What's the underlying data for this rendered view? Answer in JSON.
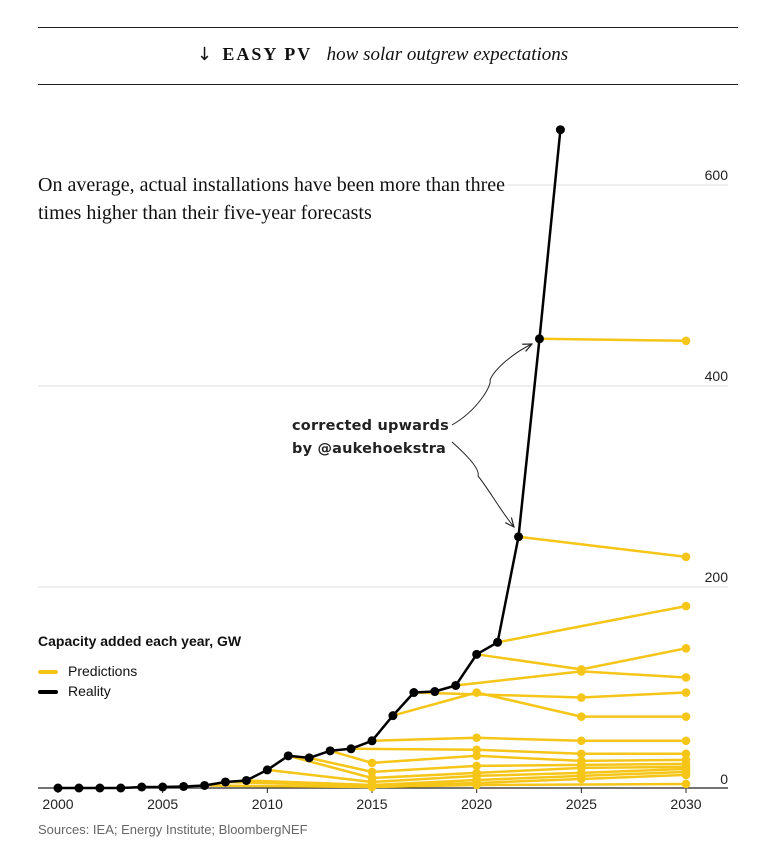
{
  "header": {
    "arrow": "↓",
    "title": "EASY PV",
    "subtitle": "how solar outgrew expectations"
  },
  "headline": "On average, actual installations have been more than three times higher than their five-year forecasts",
  "annotation": {
    "line1": "corrected upwards",
    "line2": "by @aukehoekstra"
  },
  "source": "Sources: IEA; Energy Institute; BloombergNEF",
  "colors": {
    "prediction": "#f5c518",
    "reality": "#000000",
    "grid": "#dddddd",
    "axis": "#222222"
  },
  "chart_data": {
    "type": "line",
    "title": "Capacity added each year, GW",
    "xlim": [
      2000,
      2030
    ],
    "ylim": [
      0,
      650
    ],
    "x_ticks": [
      2000,
      2005,
      2010,
      2015,
      2020,
      2025,
      2030
    ],
    "y_ticks": [
      0,
      200,
      400,
      600
    ],
    "legend": {
      "position": "left",
      "entries": [
        "Predictions",
        "Reality"
      ]
    },
    "reality": {
      "name": "Reality",
      "points": [
        [
          2000,
          0
        ],
        [
          2001,
          0
        ],
        [
          2002,
          0
        ],
        [
          2003,
          0
        ],
        [
          2004,
          1
        ],
        [
          2005,
          1
        ],
        [
          2006,
          1.5
        ],
        [
          2007,
          2.5
        ],
        [
          2008,
          6
        ],
        [
          2009,
          7.5
        ],
        [
          2010,
          18
        ],
        [
          2011,
          32
        ],
        [
          2012,
          30
        ],
        [
          2013,
          37
        ],
        [
          2014,
          39
        ],
        [
          2015,
          47
        ],
        [
          2016,
          72
        ],
        [
          2017,
          95
        ],
        [
          2018,
          96
        ],
        [
          2019,
          102
        ],
        [
          2020,
          133
        ],
        [
          2021,
          145
        ],
        [
          2022,
          250
        ],
        [
          2023,
          447
        ],
        [
          2024,
          655
        ]
      ]
    },
    "predictions": [
      {
        "points": [
          [
            2022,
            250
          ],
          [
            2030,
            230
          ]
        ]
      },
      {
        "points": [
          [
            2023,
            447
          ],
          [
            2030,
            445
          ]
        ]
      },
      {
        "points": [
          [
            2021,
            145
          ],
          [
            2030,
            181
          ]
        ]
      },
      {
        "points": [
          [
            2020,
            133
          ],
          [
            2025,
            118
          ],
          [
            2030,
            139
          ]
        ]
      },
      {
        "points": [
          [
            2019,
            102
          ],
          [
            2025,
            116
          ],
          [
            2030,
            110
          ]
        ]
      },
      {
        "points": [
          [
            2017,
            95
          ],
          [
            2025,
            90
          ],
          [
            2030,
            95
          ]
        ]
      },
      {
        "points": [
          [
            2016,
            72
          ],
          [
            2020,
            95
          ],
          [
            2025,
            71
          ],
          [
            2030,
            71
          ]
        ]
      },
      {
        "points": [
          [
            2015,
            47
          ],
          [
            2020,
            50
          ],
          [
            2025,
            47
          ],
          [
            2030,
            47
          ]
        ]
      },
      {
        "points": [
          [
            2014,
            39
          ],
          [
            2020,
            38
          ],
          [
            2025,
            34
          ],
          [
            2030,
            34
          ]
        ]
      },
      {
        "points": [
          [
            2013,
            37
          ],
          [
            2015,
            25
          ],
          [
            2020,
            32
          ],
          [
            2025,
            27
          ],
          [
            2030,
            28
          ]
        ]
      },
      {
        "points": [
          [
            2012,
            30
          ],
          [
            2015,
            16
          ],
          [
            2020,
            22
          ],
          [
            2025,
            23
          ],
          [
            2030,
            24
          ]
        ]
      },
      {
        "points": [
          [
            2011,
            32
          ],
          [
            2015,
            10
          ],
          [
            2020,
            15
          ],
          [
            2025,
            20
          ],
          [
            2030,
            21
          ]
        ]
      },
      {
        "points": [
          [
            2010,
            18
          ],
          [
            2015,
            6
          ],
          [
            2020,
            12
          ],
          [
            2025,
            15
          ],
          [
            2030,
            19
          ]
        ]
      },
      {
        "points": [
          [
            2009,
            7.5
          ],
          [
            2015,
            3
          ],
          [
            2020,
            8
          ],
          [
            2025,
            12
          ],
          [
            2030,
            16
          ]
        ]
      },
      {
        "points": [
          [
            2008,
            6
          ],
          [
            2015,
            2
          ],
          [
            2020,
            5
          ],
          [
            2025,
            9
          ],
          [
            2030,
            13
          ]
        ]
      },
      {
        "points": [
          [
            2007,
            2.5
          ],
          [
            2015,
            1
          ],
          [
            2020,
            3
          ],
          [
            2030,
            4
          ]
        ]
      }
    ]
  }
}
